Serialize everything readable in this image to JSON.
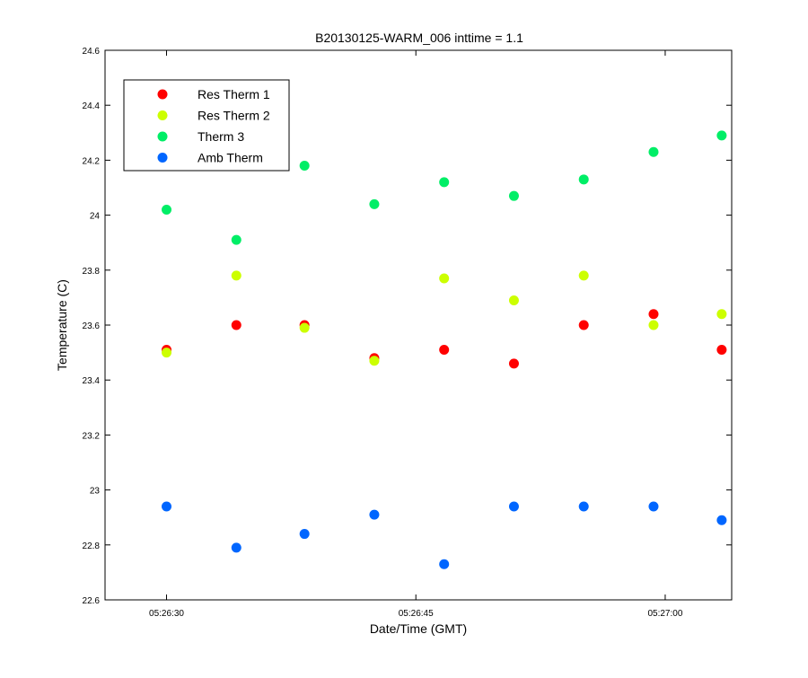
{
  "chart_data": {
    "type": "scatter",
    "title": "B20130125-WARM_006 inttime = 1.1",
    "xlabel": "Date/Time (GMT)",
    "ylabel": "Temperature (C)",
    "x_tick_labels": [
      "05:26:30",
      "05:26:45",
      "05:27:00"
    ],
    "x_ticks": [
      "05:26:30",
      "05:26:45",
      "05:27:00"
    ],
    "xlim": [
      "05:26:26.3",
      "05:27:04.0"
    ],
    "x": [
      "05:26:30.0",
      "05:26:34.2",
      "05:26:38.3",
      "05:26:42.5",
      "05:26:46.7",
      "05:26:50.9",
      "05:26:55.1",
      "05:26:59.3",
      "05:27:03.4"
    ],
    "y_ticks": [
      22.6,
      22.8,
      23,
      23.2,
      23.4,
      23.6,
      23.8,
      24,
      24.2,
      24.4,
      24.6
    ],
    "y_tick_labels": [
      "22.6",
      "22.8",
      "23",
      "23.2",
      "23.4",
      "23.6",
      "23.8",
      "24",
      "24.2",
      "24.4",
      "24.6"
    ],
    "ylim": [
      22.6,
      24.6
    ],
    "grid": false,
    "legend_position": "top-left",
    "series": [
      {
        "name": "Res Therm 1",
        "color": "#ff0000",
        "values": [
          23.51,
          23.6,
          23.6,
          23.48,
          23.51,
          23.46,
          23.6,
          23.64,
          23.51
        ]
      },
      {
        "name": "Res Therm 2",
        "color": "#ccff00",
        "values": [
          23.5,
          23.78,
          23.59,
          23.47,
          23.77,
          23.69,
          23.78,
          23.6,
          23.64
        ]
      },
      {
        "name": "Therm 3",
        "color": "#00ee66",
        "values": [
          24.02,
          23.91,
          24.18,
          24.04,
          24.12,
          24.07,
          24.13,
          24.23,
          24.29
        ]
      },
      {
        "name": "Amb Therm",
        "color": "#0066ff",
        "values": [
          22.94,
          22.79,
          22.84,
          22.91,
          22.73,
          22.94,
          22.94,
          22.94,
          22.89
        ]
      }
    ]
  }
}
